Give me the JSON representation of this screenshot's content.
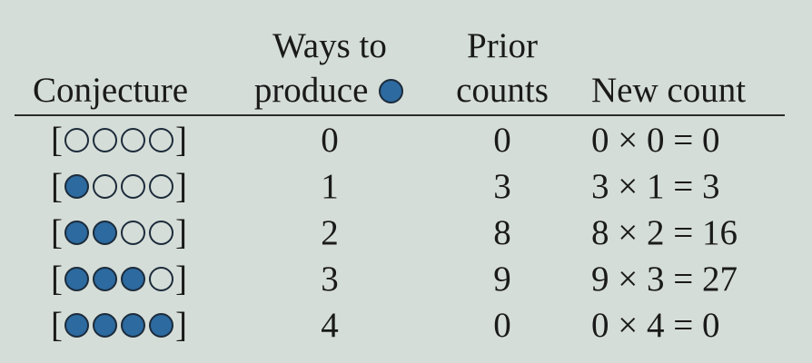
{
  "header": {
    "conjecture": "Conjecture",
    "ways_line1": "Ways to",
    "ways_line2": "produce",
    "prior_line1": "Prior",
    "prior_line2": "counts",
    "new_count": "New count"
  },
  "colors": {
    "filled": "#2c6aa0",
    "border": "#1c2b3a",
    "background": "#d5ddd8"
  },
  "rows": [
    {
      "filled": 0,
      "total": 4,
      "ways": "0",
      "prior": "0",
      "new": "0 × 0 = 0"
    },
    {
      "filled": 1,
      "total": 4,
      "ways": "1",
      "prior": "3",
      "new": "3 × 1 = 3"
    },
    {
      "filled": 2,
      "total": 4,
      "ways": "2",
      "prior": "8",
      "new": "8 × 2 = 16"
    },
    {
      "filled": 3,
      "total": 4,
      "ways": "3",
      "prior": "9",
      "new": "9 × 3 = 27"
    },
    {
      "filled": 4,
      "total": 4,
      "ways": "4",
      "prior": "0",
      "new": "0 × 4 = 0"
    }
  ]
}
